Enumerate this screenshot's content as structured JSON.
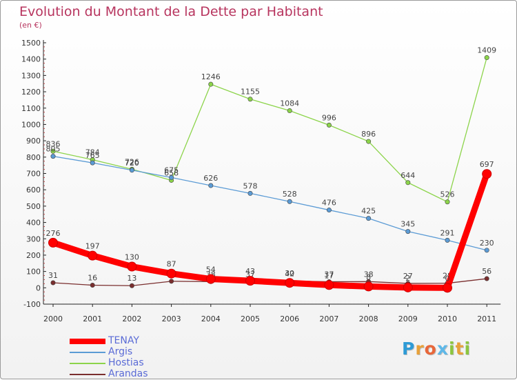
{
  "header": {
    "title": "Evolution du Montant de la Dette par Habitant",
    "subtitle": "(en €)"
  },
  "logo": {
    "letters": [
      "P",
      "r",
      "o",
      "x",
      "i",
      "t",
      "i"
    ],
    "colors": [
      "#2e9bd6",
      "#e8a13a",
      "#e8673a",
      "#5fb8e8",
      "#8cc63f",
      "#e8a13a",
      "#8cc63f"
    ]
  },
  "chart_data": {
    "type": "line",
    "title": "Evolution du Montant de la Dette par Habitant",
    "subtitle": "(en €)",
    "xlabel": "",
    "ylabel": "",
    "x": [
      "2000",
      "2001",
      "2002",
      "2003",
      "2004",
      "2005",
      "2006",
      "2007",
      "2008",
      "2009",
      "2010",
      "2011"
    ],
    "ylim": [
      -100,
      1500
    ],
    "yticks": [
      -100,
      0,
      100,
      200,
      300,
      400,
      500,
      600,
      700,
      800,
      900,
      1000,
      1100,
      1200,
      1300,
      1400,
      1500
    ],
    "grid": false,
    "legend_position": "bottom-left",
    "series": [
      {
        "name": "TENAY",
        "color": "#ff0000",
        "values": [
          276,
          197,
          130,
          87,
          54,
          43,
          30,
          17,
          8,
          2,
          0,
          697
        ],
        "labels": [
          "276",
          "197",
          "130",
          "87",
          "54",
          "43",
          "30",
          "17",
          "8",
          "2",
          "0",
          "697"
        ]
      },
      {
        "name": "Argis",
        "color": "#5b9bd5",
        "values": [
          805,
          765,
          720,
          675,
          626,
          578,
          528,
          476,
          425,
          345,
          291,
          230
        ],
        "labels": [
          "805",
          "765",
          "720",
          "675",
          "626",
          "578",
          "528",
          "476",
          "425",
          "345",
          "291",
          "230"
        ]
      },
      {
        "name": "Hostias",
        "color": "#8cd44a",
        "values": [
          836,
          784,
          726,
          658,
          1246,
          1155,
          1084,
          996,
          896,
          644,
          526,
          1409
        ],
        "labels": [
          "836",
          "784",
          "726",
          "658",
          "1246",
          "1155",
          "1084",
          "996",
          "896",
          "644",
          "526",
          "1409"
        ]
      },
      {
        "name": "Arandas",
        "color": "#7a2e2e",
        "values": [
          31,
          16,
          13,
          40,
          38,
          37,
          42,
          37,
          38,
          27,
          28,
          56
        ],
        "labels": [
          "31",
          "16",
          "13",
          "40",
          "38",
          "37",
          "42",
          "37",
          "38",
          "27",
          "28",
          "56"
        ]
      }
    ]
  }
}
